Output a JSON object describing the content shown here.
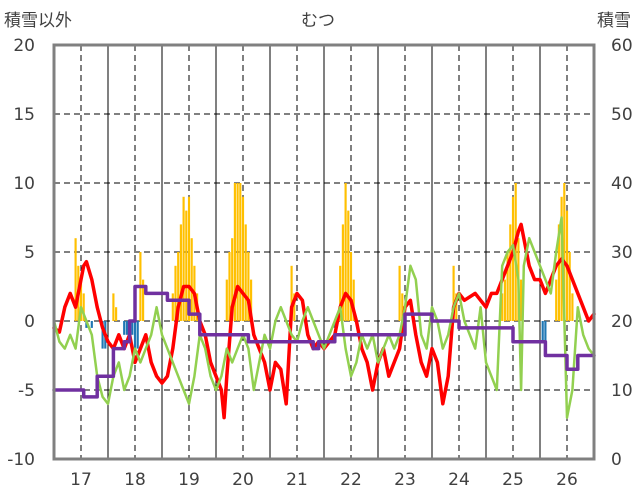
{
  "chart_data": {
    "type": "bar+line",
    "title": "むつ",
    "left_axis_label": "積雪以外",
    "right_axis_label": "積雪",
    "left_ylim": [
      -10,
      20
    ],
    "left_ticks": [
      "-10",
      "-5",
      "0",
      "5",
      "10",
      "15",
      "20"
    ],
    "right_ylim": [
      0,
      60
    ],
    "right_ticks": [
      "0",
      "10",
      "20",
      "30",
      "40",
      "50",
      "60"
    ],
    "x_tick_labels": [
      "17",
      "18",
      "19",
      "20",
      "21",
      "22",
      "23",
      "24",
      "25",
      "26"
    ],
    "xlim": [
      16.5,
      26.5
    ],
    "grid": "dashed",
    "colors": {
      "precip_positive": "#FFC000",
      "precip_negative": "#1F77B4",
      "temperature": "#FF0000",
      "diff": "#92D050",
      "snow_depth": "#7030A0",
      "frame": "#808080",
      "grid": "#000000"
    },
    "series": [
      {
        "key": "precip_positive",
        "axis": "left",
        "kind": "bar",
        "points": [
          [
            16.9,
            6
          ],
          [
            16.95,
            4
          ],
          [
            17.0,
            3
          ],
          [
            17.05,
            2
          ],
          [
            17.6,
            2
          ],
          [
            17.65,
            1
          ],
          [
            18.1,
            5
          ],
          [
            18.15,
            3
          ],
          [
            18.7,
            2
          ],
          [
            18.75,
            4
          ],
          [
            18.8,
            5
          ],
          [
            18.85,
            7
          ],
          [
            18.9,
            9
          ],
          [
            18.95,
            8
          ],
          [
            19.0,
            9
          ],
          [
            19.05,
            6
          ],
          [
            19.1,
            4
          ],
          [
            19.15,
            2
          ],
          [
            19.7,
            3
          ],
          [
            19.75,
            5
          ],
          [
            19.8,
            6
          ],
          [
            19.85,
            10
          ],
          [
            19.9,
            10
          ],
          [
            19.95,
            10
          ],
          [
            20.0,
            9
          ],
          [
            20.05,
            7
          ],
          [
            20.1,
            5
          ],
          [
            20.15,
            3
          ],
          [
            20.9,
            4
          ],
          [
            20.95,
            2
          ],
          [
            21.8,
            4
          ],
          [
            21.85,
            7
          ],
          [
            21.9,
            10
          ],
          [
            21.95,
            8
          ],
          [
            22.0,
            5
          ],
          [
            22.05,
            3
          ],
          [
            22.9,
            4
          ],
          [
            22.95,
            2
          ],
          [
            23.9,
            4
          ],
          [
            23.95,
            2
          ],
          [
            24.8,
            2
          ],
          [
            24.85,
            3
          ],
          [
            24.9,
            5
          ],
          [
            24.95,
            7
          ],
          [
            25.0,
            9
          ],
          [
            25.05,
            10
          ],
          [
            25.1,
            6
          ],
          [
            25.15,
            3
          ],
          [
            25.8,
            3
          ],
          [
            25.85,
            7
          ],
          [
            25.9,
            9
          ],
          [
            25.95,
            10
          ],
          [
            26.0,
            8
          ],
          [
            26.05,
            5
          ],
          [
            26.1,
            2
          ]
        ]
      },
      {
        "key": "precip_negative",
        "axis": "left",
        "kind": "bar",
        "points": [
          [
            17.1,
            -0.5
          ],
          [
            17.2,
            -0.5
          ],
          [
            17.4,
            -2
          ],
          [
            17.45,
            -2
          ],
          [
            17.8,
            -1
          ],
          [
            17.85,
            -1
          ],
          [
            17.9,
            -1
          ],
          [
            17.95,
            -1
          ],
          [
            18.0,
            -2
          ],
          [
            18.05,
            -2
          ],
          [
            21.7,
            -0.5
          ],
          [
            25.55,
            -1.5
          ],
          [
            25.6,
            -1.5
          ]
        ]
      },
      {
        "key": "temperature",
        "axis": "left",
        "kind": "line",
        "points": [
          [
            16.5,
            -0.5
          ],
          [
            16.6,
            -0.8
          ],
          [
            16.7,
            1
          ],
          [
            16.8,
            2
          ],
          [
            16.9,
            1
          ],
          [
            17.0,
            3
          ],
          [
            17.05,
            4
          ],
          [
            17.1,
            4.3
          ],
          [
            17.2,
            3
          ],
          [
            17.3,
            1
          ],
          [
            17.4,
            -0.5
          ],
          [
            17.5,
            -1.5
          ],
          [
            17.6,
            -2
          ],
          [
            17.7,
            -1
          ],
          [
            17.8,
            -2
          ],
          [
            17.9,
            -1
          ],
          [
            18.0,
            -3
          ],
          [
            18.1,
            -2
          ],
          [
            18.2,
            -1
          ],
          [
            18.3,
            -3
          ],
          [
            18.4,
            -4
          ],
          [
            18.5,
            -4.5
          ],
          [
            18.6,
            -4
          ],
          [
            18.7,
            -2
          ],
          [
            18.8,
            1
          ],
          [
            18.9,
            2.5
          ],
          [
            19.0,
            2.5
          ],
          [
            19.1,
            2
          ],
          [
            19.2,
            0
          ],
          [
            19.3,
            -1
          ],
          [
            19.4,
            -3
          ],
          [
            19.5,
            -4
          ],
          [
            19.6,
            -5
          ],
          [
            19.65,
            -7
          ],
          [
            19.7,
            -4
          ],
          [
            19.8,
            1
          ],
          [
            19.9,
            2.5
          ],
          [
            20.0,
            2
          ],
          [
            20.1,
            1.5
          ],
          [
            20.2,
            -1
          ],
          [
            20.3,
            -2
          ],
          [
            20.4,
            -3
          ],
          [
            20.5,
            -5
          ],
          [
            20.6,
            -3
          ],
          [
            20.7,
            -3.5
          ],
          [
            20.8,
            -6
          ],
          [
            20.9,
            1
          ],
          [
            21.0,
            2
          ],
          [
            21.1,
            1.5
          ],
          [
            21.2,
            -1
          ],
          [
            21.3,
            -2
          ],
          [
            21.4,
            -1.5
          ],
          [
            21.5,
            -2
          ],
          [
            21.6,
            -1.5
          ],
          [
            21.7,
            -1
          ],
          [
            21.8,
            1
          ],
          [
            21.9,
            2
          ],
          [
            22.0,
            1.5
          ],
          [
            22.1,
            0
          ],
          [
            22.2,
            -2
          ],
          [
            22.3,
            -3
          ],
          [
            22.4,
            -5
          ],
          [
            22.5,
            -3
          ],
          [
            22.6,
            -2
          ],
          [
            22.7,
            -4
          ],
          [
            22.8,
            -3
          ],
          [
            22.9,
            -2
          ],
          [
            23.0,
            1
          ],
          [
            23.1,
            1.5
          ],
          [
            23.2,
            -1
          ],
          [
            23.3,
            -3
          ],
          [
            23.4,
            -4
          ],
          [
            23.5,
            -2
          ],
          [
            23.6,
            -3
          ],
          [
            23.7,
            -6
          ],
          [
            23.8,
            -4
          ],
          [
            23.9,
            1
          ],
          [
            24.0,
            2
          ],
          [
            24.1,
            1.5
          ],
          [
            24.3,
            2
          ],
          [
            24.5,
            1
          ],
          [
            24.6,
            2
          ],
          [
            24.7,
            2
          ],
          [
            24.8,
            3
          ],
          [
            24.9,
            4
          ],
          [
            25.0,
            5
          ],
          [
            25.1,
            6.5
          ],
          [
            25.15,
            7
          ],
          [
            25.2,
            6
          ],
          [
            25.3,
            4
          ],
          [
            25.4,
            3
          ],
          [
            25.5,
            3
          ],
          [
            25.6,
            2
          ],
          [
            25.7,
            3
          ],
          [
            25.8,
            4
          ],
          [
            25.9,
            4.5
          ],
          [
            26.0,
            4
          ],
          [
            26.1,
            3
          ],
          [
            26.2,
            2
          ],
          [
            26.3,
            1
          ],
          [
            26.4,
            0
          ],
          [
            26.5,
            0.5
          ]
        ]
      },
      {
        "key": "diff",
        "axis": "left",
        "kind": "line",
        "points": [
          [
            16.5,
            0
          ],
          [
            16.6,
            -1.5
          ],
          [
            16.7,
            -2
          ],
          [
            16.8,
            -1
          ],
          [
            16.9,
            -2
          ],
          [
            17.0,
            1
          ],
          [
            17.1,
            0
          ],
          [
            17.2,
            -1
          ],
          [
            17.3,
            -4
          ],
          [
            17.4,
            -5.5
          ],
          [
            17.5,
            -6
          ],
          [
            17.6,
            -4
          ],
          [
            17.7,
            -3
          ],
          [
            17.8,
            -5
          ],
          [
            17.9,
            -4
          ],
          [
            18.0,
            -2
          ],
          [
            18.1,
            -3
          ],
          [
            18.2,
            -2
          ],
          [
            18.3,
            -1
          ],
          [
            18.4,
            1
          ],
          [
            18.5,
            -1
          ],
          [
            18.6,
            -2
          ],
          [
            18.7,
            -3
          ],
          [
            18.8,
            -4
          ],
          [
            18.9,
            -5
          ],
          [
            19.0,
            -6
          ],
          [
            19.1,
            -4
          ],
          [
            19.2,
            -1
          ],
          [
            19.3,
            -2
          ],
          [
            19.4,
            -4
          ],
          [
            19.5,
            -5
          ],
          [
            19.6,
            -4
          ],
          [
            19.7,
            -2
          ],
          [
            19.8,
            -3
          ],
          [
            19.9,
            -2
          ],
          [
            20.0,
            -1
          ],
          [
            20.1,
            -2
          ],
          [
            20.2,
            -5
          ],
          [
            20.3,
            -3
          ],
          [
            20.4,
            -1
          ],
          [
            20.5,
            -2
          ],
          [
            20.6,
            0
          ],
          [
            20.7,
            1
          ],
          [
            20.8,
            0
          ],
          [
            20.9,
            -1
          ],
          [
            21.0,
            -1.5
          ],
          [
            21.1,
            0
          ],
          [
            21.2,
            1
          ],
          [
            21.3,
            0
          ],
          [
            21.4,
            -1
          ],
          [
            21.5,
            -2
          ],
          [
            21.6,
            -1
          ],
          [
            21.7,
            0
          ],
          [
            21.8,
            1
          ],
          [
            21.9,
            -2
          ],
          [
            22.0,
            -4
          ],
          [
            22.1,
            -3
          ],
          [
            22.2,
            -1
          ],
          [
            22.3,
            -2
          ],
          [
            22.4,
            -1
          ],
          [
            22.5,
            -3
          ],
          [
            22.6,
            -2
          ],
          [
            22.7,
            -1
          ],
          [
            22.8,
            -2
          ],
          [
            22.9,
            -1
          ],
          [
            23.0,
            1
          ],
          [
            23.1,
            4
          ],
          [
            23.2,
            3
          ],
          [
            23.3,
            -1
          ],
          [
            23.4,
            -2
          ],
          [
            23.5,
            1
          ],
          [
            23.6,
            0
          ],
          [
            23.7,
            -2
          ],
          [
            23.8,
            -1
          ],
          [
            23.9,
            1
          ],
          [
            24.0,
            2
          ],
          [
            24.1,
            0
          ],
          [
            24.2,
            -1
          ],
          [
            24.3,
            -2
          ],
          [
            24.4,
            1
          ],
          [
            24.5,
            -3
          ],
          [
            24.6,
            -4
          ],
          [
            24.7,
            -5
          ],
          [
            24.8,
            4
          ],
          [
            24.9,
            5
          ],
          [
            25.0,
            5.5
          ],
          [
            25.1,
            3
          ],
          [
            25.15,
            -5
          ],
          [
            25.2,
            4
          ],
          [
            25.3,
            6
          ],
          [
            25.4,
            5
          ],
          [
            25.5,
            4
          ],
          [
            25.6,
            3
          ],
          [
            25.7,
            2
          ],
          [
            25.8,
            5
          ],
          [
            25.9,
            7.5
          ],
          [
            26.0,
            -7
          ],
          [
            26.1,
            -5
          ],
          [
            26.2,
            1
          ],
          [
            26.3,
            -1
          ],
          [
            26.4,
            -2
          ],
          [
            26.5,
            -2.5
          ]
        ]
      },
      {
        "key": "snow_depth",
        "axis": "right",
        "kind": "step",
        "points": [
          [
            16.5,
            10
          ],
          [
            17.0,
            10
          ],
          [
            17.05,
            9
          ],
          [
            17.2,
            9
          ],
          [
            17.3,
            12
          ],
          [
            17.5,
            12
          ],
          [
            17.6,
            16
          ],
          [
            17.8,
            17
          ],
          [
            17.9,
            20
          ],
          [
            18.0,
            25
          ],
          [
            18.1,
            25
          ],
          [
            18.2,
            24
          ],
          [
            18.5,
            24
          ],
          [
            18.6,
            23
          ],
          [
            18.9,
            23
          ],
          [
            19.0,
            21
          ],
          [
            19.1,
            21
          ],
          [
            19.2,
            18
          ],
          [
            19.5,
            18
          ],
          [
            19.6,
            18
          ],
          [
            20.0,
            18
          ],
          [
            20.1,
            17
          ],
          [
            20.5,
            17
          ],
          [
            20.6,
            17
          ],
          [
            21.2,
            17
          ],
          [
            21.3,
            16
          ],
          [
            21.4,
            17
          ],
          [
            21.6,
            17
          ],
          [
            21.7,
            18
          ],
          [
            22.3,
            18
          ],
          [
            22.4,
            18
          ],
          [
            22.9,
            18
          ],
          [
            23.0,
            21
          ],
          [
            23.4,
            21
          ],
          [
            23.5,
            20
          ],
          [
            23.9,
            20
          ],
          [
            24.0,
            19
          ],
          [
            24.9,
            19
          ],
          [
            25.0,
            17
          ],
          [
            25.5,
            17
          ],
          [
            25.6,
            15
          ],
          [
            25.9,
            15
          ],
          [
            26.0,
            13
          ],
          [
            26.1,
            13
          ],
          [
            26.2,
            15
          ],
          [
            26.5,
            15
          ]
        ]
      }
    ]
  }
}
